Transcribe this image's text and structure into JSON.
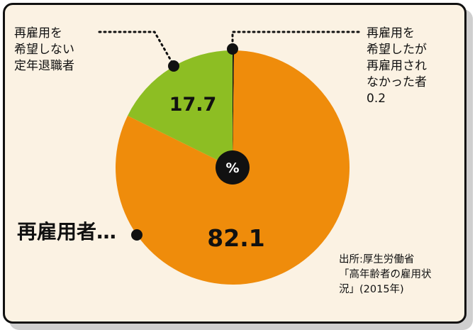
{
  "chart_data": {
    "type": "pie",
    "unit_label": "%",
    "slices": [
      {
        "label": "再雇用者",
        "value": 82.1,
        "value_label": "82.1",
        "color": "#ef8c0b"
      },
      {
        "label": "再雇用を希望しない定年退職者",
        "value": 17.7,
        "value_label": "17.7",
        "color": "#8dbe23"
      },
      {
        "label": "再雇用を希望したが再雇用されなかった者",
        "value": 0.2,
        "value_label": "0.2",
        "color": "#111111"
      }
    ]
  },
  "callouts": {
    "not_wanting": [
      "再雇用を",
      "希望しない",
      "定年退職者"
    ],
    "not_rehired": [
      "再雇用を",
      "希望したが",
      "再雇用され",
      "なかった者",
      "0.2"
    ],
    "rehired": "再雇用者…"
  },
  "source": [
    "出所:厚生労働省",
    "「高年齢者の雇用状",
    "況」(2015年)"
  ],
  "colors": {
    "background": "#fbf2e3",
    "border": "#111111",
    "orange": "#ef8c0b",
    "green": "#8dbe23"
  }
}
